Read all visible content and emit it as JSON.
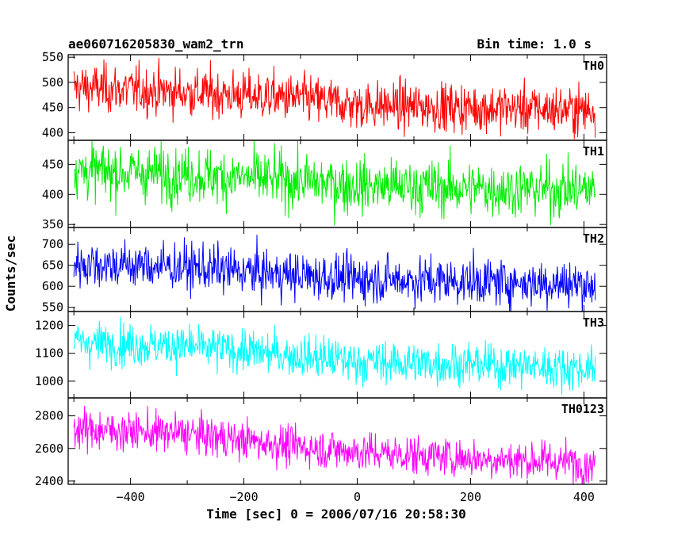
{
  "chart_data": {
    "type": "line",
    "title": "ae060716205830_wam2_trn",
    "bin_time": "Bin time: 1.0 s",
    "xlabel": "Time [sec] 0 = 2006/07/16 20:58:30",
    "ylabel": "Counts/sec",
    "xlim": [
      -510,
      440
    ],
    "x_range": [
      -500,
      420
    ],
    "x_ticks": [
      -400,
      -200,
      0,
      200,
      400
    ],
    "x_ticklabels": [
      "−400",
      "−200",
      "0",
      "200",
      "400"
    ],
    "grid": false,
    "series": [
      {
        "name": "TH0",
        "color": "#ff0000",
        "ylim": [
          385,
          555
        ],
        "y_ticks": [
          400,
          450,
          500,
          550
        ],
        "y_ticklabels": [
          "400",
          "450",
          "500",
          "550"
        ],
        "trend": [
          [
            -500,
            490
          ],
          [
            -300,
            480
          ],
          [
            -100,
            468
          ],
          [
            0,
            455
          ],
          [
            200,
            450
          ],
          [
            420,
            445
          ]
        ],
        "noise": 24,
        "n": 921
      },
      {
        "name": "TH1",
        "color": "#00ee00",
        "ylim": [
          345,
          490
        ],
        "y_ticks": [
          350,
          400,
          450
        ],
        "y_ticklabels": [
          "350",
          "400",
          "450"
        ],
        "trend": [
          [
            -500,
            440
          ],
          [
            -300,
            433
          ],
          [
            -100,
            422
          ],
          [
            0,
            415
          ],
          [
            200,
            410
          ],
          [
            420,
            408
          ]
        ],
        "noise": 23,
        "n": 921
      },
      {
        "name": "TH2",
        "color": "#0000ff",
        "ylim": [
          540,
          740
        ],
        "y_ticks": [
          550,
          600,
          650,
          700
        ],
        "y_ticklabels": [
          "550",
          "600",
          "650",
          "700"
        ],
        "trend": [
          [
            -500,
            655
          ],
          [
            -300,
            645
          ],
          [
            -100,
            625
          ],
          [
            0,
            618
          ],
          [
            200,
            612
          ],
          [
            420,
            605
          ]
        ],
        "noise": 28,
        "n": 921
      },
      {
        "name": "TH3",
        "color": "#00ffff",
        "ylim": [
          940,
          1250
        ],
        "y_ticks": [
          1000,
          1100,
          1200
        ],
        "y_ticklabels": [
          "1000",
          "1100",
          "1200"
        ],
        "trend": [
          [
            -500,
            1140
          ],
          [
            -300,
            1125
          ],
          [
            -100,
            1090
          ],
          [
            0,
            1070
          ],
          [
            200,
            1060
          ],
          [
            420,
            1045
          ]
        ],
        "noise": 38,
        "n": 921
      },
      {
        "name": "TH0123",
        "color": "#ff00ff",
        "ylim": [
          2380,
          2910
        ],
        "y_ticks": [
          2400,
          2600,
          2800
        ],
        "y_ticklabels": [
          "2400",
          "2600",
          "2800"
        ],
        "trend": [
          [
            -500,
            2720
          ],
          [
            -300,
            2690
          ],
          [
            -100,
            2610
          ],
          [
            0,
            2580
          ],
          [
            200,
            2540
          ],
          [
            420,
            2510
          ]
        ],
        "noise": 60,
        "n": 921
      }
    ]
  }
}
